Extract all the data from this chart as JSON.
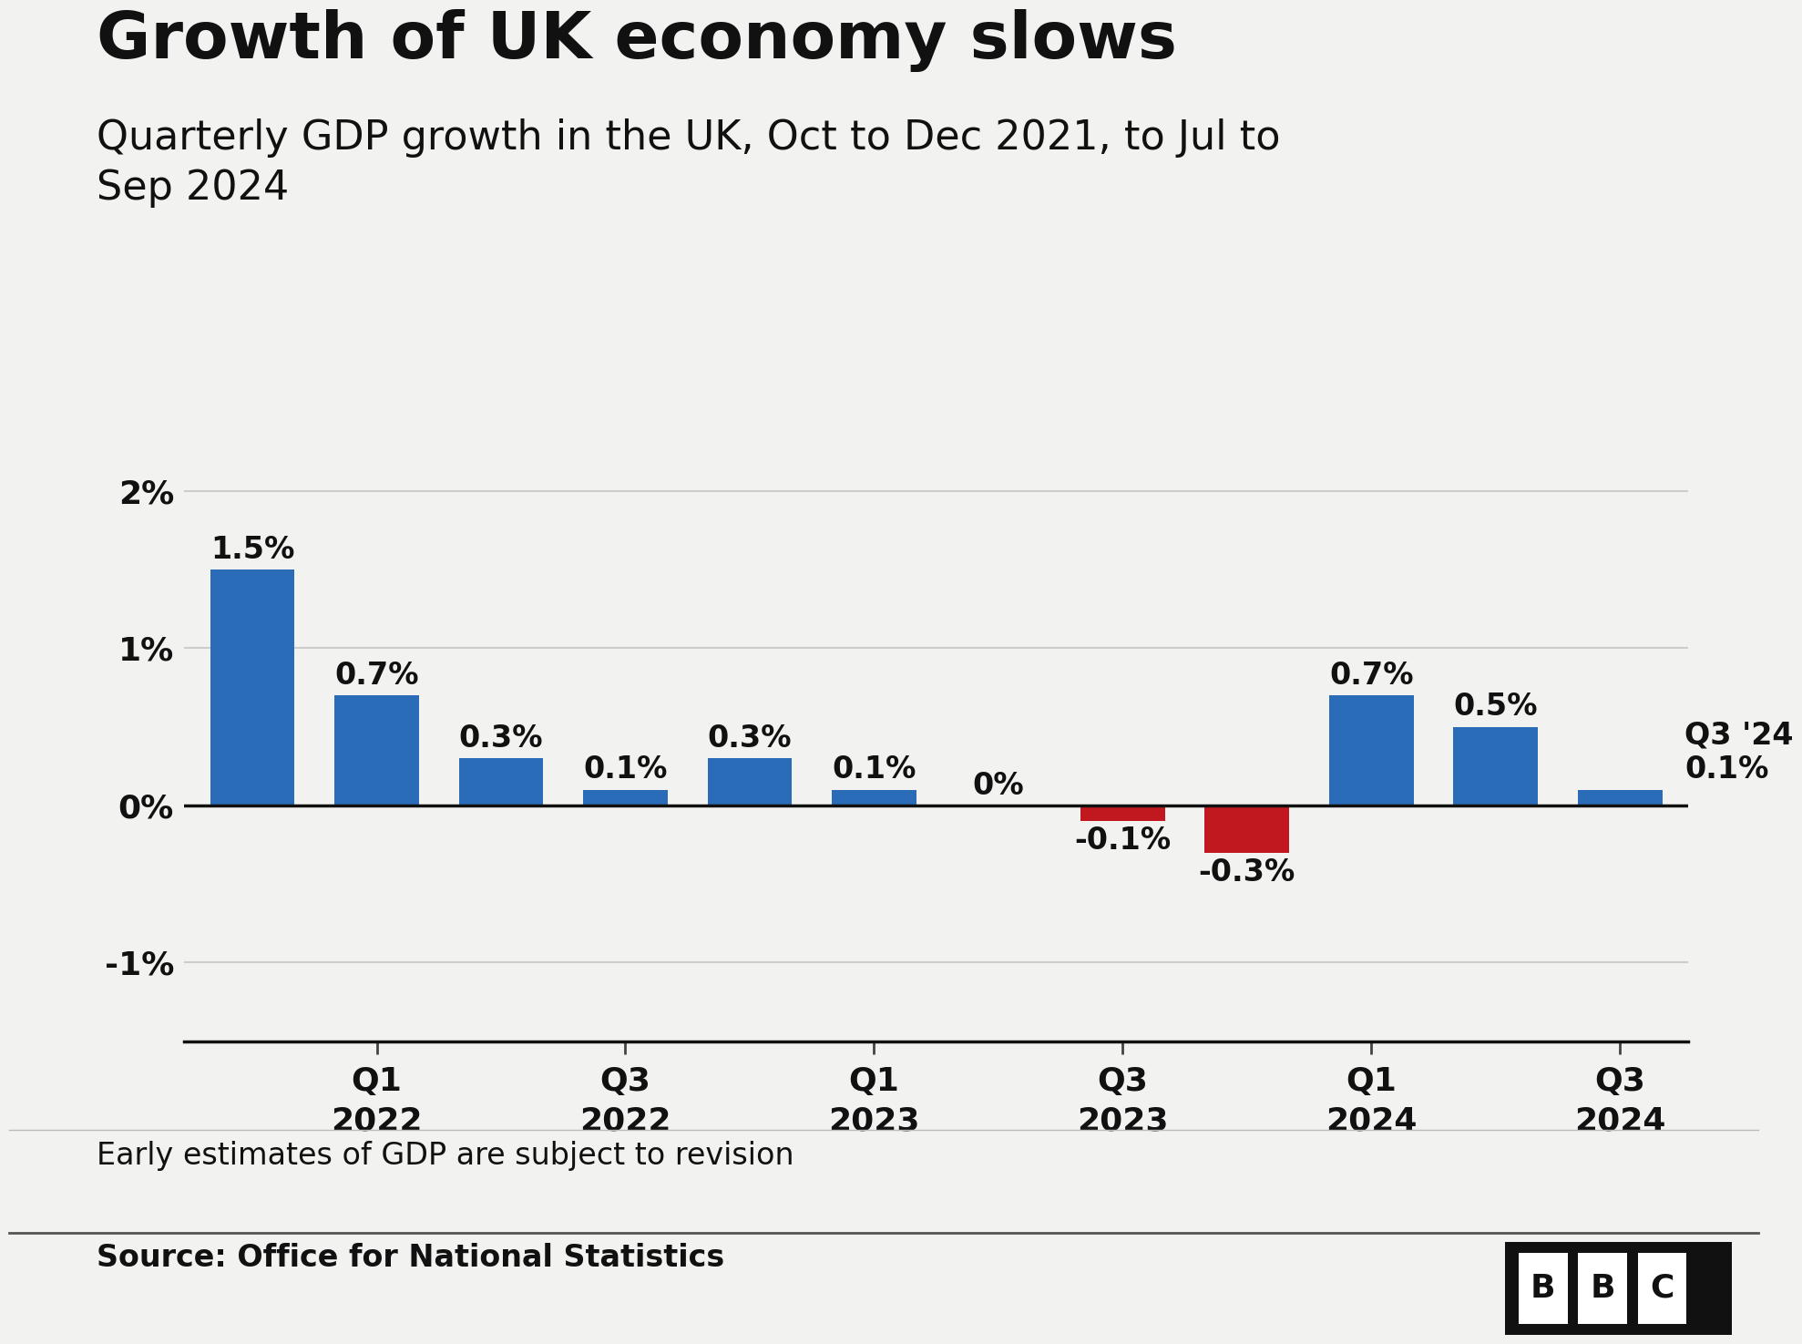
{
  "title": "Growth of UK economy slows",
  "subtitle": "Quarterly GDP growth in the UK, Oct to Dec 2021, to Jul to\nSep 2024",
  "values": [
    1.5,
    0.7,
    0.3,
    0.1,
    0.3,
    0.1,
    0.0,
    -0.1,
    -0.3,
    0.7,
    0.5,
    0.1
  ],
  "labels": [
    "1.5%",
    "0.7%",
    "0.3%",
    "0.1%",
    "0.3%",
    "0.1%",
    "0%",
    "-0.1%",
    "-0.3%",
    "0.7%",
    "0.5%",
    "0.1%"
  ],
  "bar_colors": [
    "#2b6cb8",
    "#2b6cb8",
    "#2b6cb8",
    "#2b6cb8",
    "#2b6cb8",
    "#2b6cb8",
    "#2b6cb8",
    "#c0181e",
    "#c0181e",
    "#2b6cb8",
    "#2b6cb8",
    "#2b6cb8"
  ],
  "x_tick_positions": [
    1,
    3,
    5,
    7,
    9,
    11
  ],
  "x_tick_labels": [
    "Q1\n2022",
    "Q3\n2022",
    "Q1\n2023",
    "Q3\n2023",
    "Q1\n2024",
    "Q3\n2024"
  ],
  "ylim": [
    -1.5,
    2.5
  ],
  "yticks": [
    -1.0,
    0.0,
    1.0,
    2.0
  ],
  "ytick_labels": [
    "-1%",
    "0%",
    "1%",
    "2%"
  ],
  "background_color": "#f2f2f0",
  "note": "Early estimates of GDP are subject to revision",
  "source": "Source: Office for National Statistics",
  "last_bar_label": "Q3 '24\n0.1%",
  "title_fontsize": 52,
  "subtitle_fontsize": 32,
  "bar_label_fontsize": 24,
  "axis_label_fontsize": 26,
  "note_fontsize": 24,
  "source_fontsize": 24,
  "bbc_fontsize": 26
}
